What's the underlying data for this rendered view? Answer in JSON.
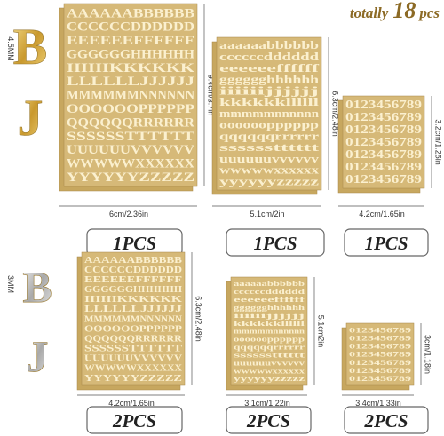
{
  "title": {
    "prefix": "totally",
    "number": "18",
    "suffix": "pcs"
  },
  "top_row": {
    "sample": {
      "size": "4.5MM",
      "letters": [
        "B",
        "J"
      ]
    },
    "sheets": [
      {
        "rows": [
          "AAAAAABBBBBB",
          "CCCCCCDDDDDD",
          "EEEEEEFFFFFF",
          "GGGGGGHHHHHH",
          "IIIIIIKKKKKK",
          "LLLLLLJJJJJJ",
          "MMMMMMNNNNNN",
          "OOOOOOPPPPPP",
          "QQQQQQRRRRRR",
          "SSSSSSTTTTTT",
          "UUUUUUVVVVVV",
          "WWWWWXXXXXX",
          "YYYYYYZZZZZ"
        ],
        "height": "9.4cm/3.7in",
        "width": "6cm/2.36in",
        "quantity": "1PCS"
      },
      {
        "rows": [
          "aaaaaabbbbbb",
          "ccccccdddddd",
          "eeeeeeffffff",
          "gggggghhhhhh",
          "iiiiiijjjjjj",
          "kkkkkkllllll",
          "mmmmmnnnnnn",
          "oooooopppppp",
          "qqqqqqrrrrrr",
          "sssssstttttt",
          "uuuuuuvvvvvv",
          "wwwwwxxxxxx",
          "yyyyyyzzzzz"
        ],
        "height": "6.3cm/2.48in",
        "width": "5.1cm/2in",
        "quantity": "1PCS"
      },
      {
        "rows": [
          "0123456789",
          "0123456789",
          "0123456789",
          "0123456789",
          "0123456789",
          "0123456789",
          "0123456789"
        ],
        "height": "3.2cm/1.25in",
        "width": "4.2cm/1.65in",
        "quantity": "1PCS"
      }
    ]
  },
  "bottom_row": {
    "sample": {
      "size": "3MM",
      "letters": [
        "B",
        "J"
      ]
    },
    "sheets": [
      {
        "rows": [
          "AAAAAABBBBBB",
          "CCCCCCDDDDDD",
          "EEEEEEFFFFFF",
          "GGGGGGHHHHHH",
          "IIIIIIKKKKKK",
          "LLLLLLJJJJJJ",
          "MMMMMMNNNNNN",
          "OOOOOOPPPPPP",
          "QQQQQQRRRRRR",
          "SSSSSSTTTTTT",
          "UUUUUUVVVVVV",
          "WWWWWXXXXXX",
          "YYYYYYZZZZZ"
        ],
        "height": "6.3cm/2.48in",
        "width": "4.2cm/1.65in",
        "quantity": "2PCS"
      },
      {
        "rows": [
          "aaaaaabbbbbb",
          "ccccccdddddd",
          "eeeeeeffffff",
          "gggggghhhhhh",
          "iiiiiijjjjjj",
          "kkkkkkllllll",
          "mmmmmnnnnnn",
          "oooooopppppp",
          "qqqqqqrrrrrr",
          "sssssstttttt",
          "uuuuuuvvvvvv",
          "wwwwwxxxxxx",
          "yyyyyyzzzzz"
        ],
        "height": "5.1cm2in",
        "width": "3.1cm/1.22in",
        "quantity": "2PCS"
      },
      {
        "rows": [
          "0123456789",
          "0123456789",
          "0123456789",
          "0123456789",
          "0123456789",
          "0123456789",
          "0123456789"
        ],
        "height": "3cm/1.18in",
        "width": "3.4cm/1.33in",
        "quantity": "2PCS"
      }
    ]
  }
}
